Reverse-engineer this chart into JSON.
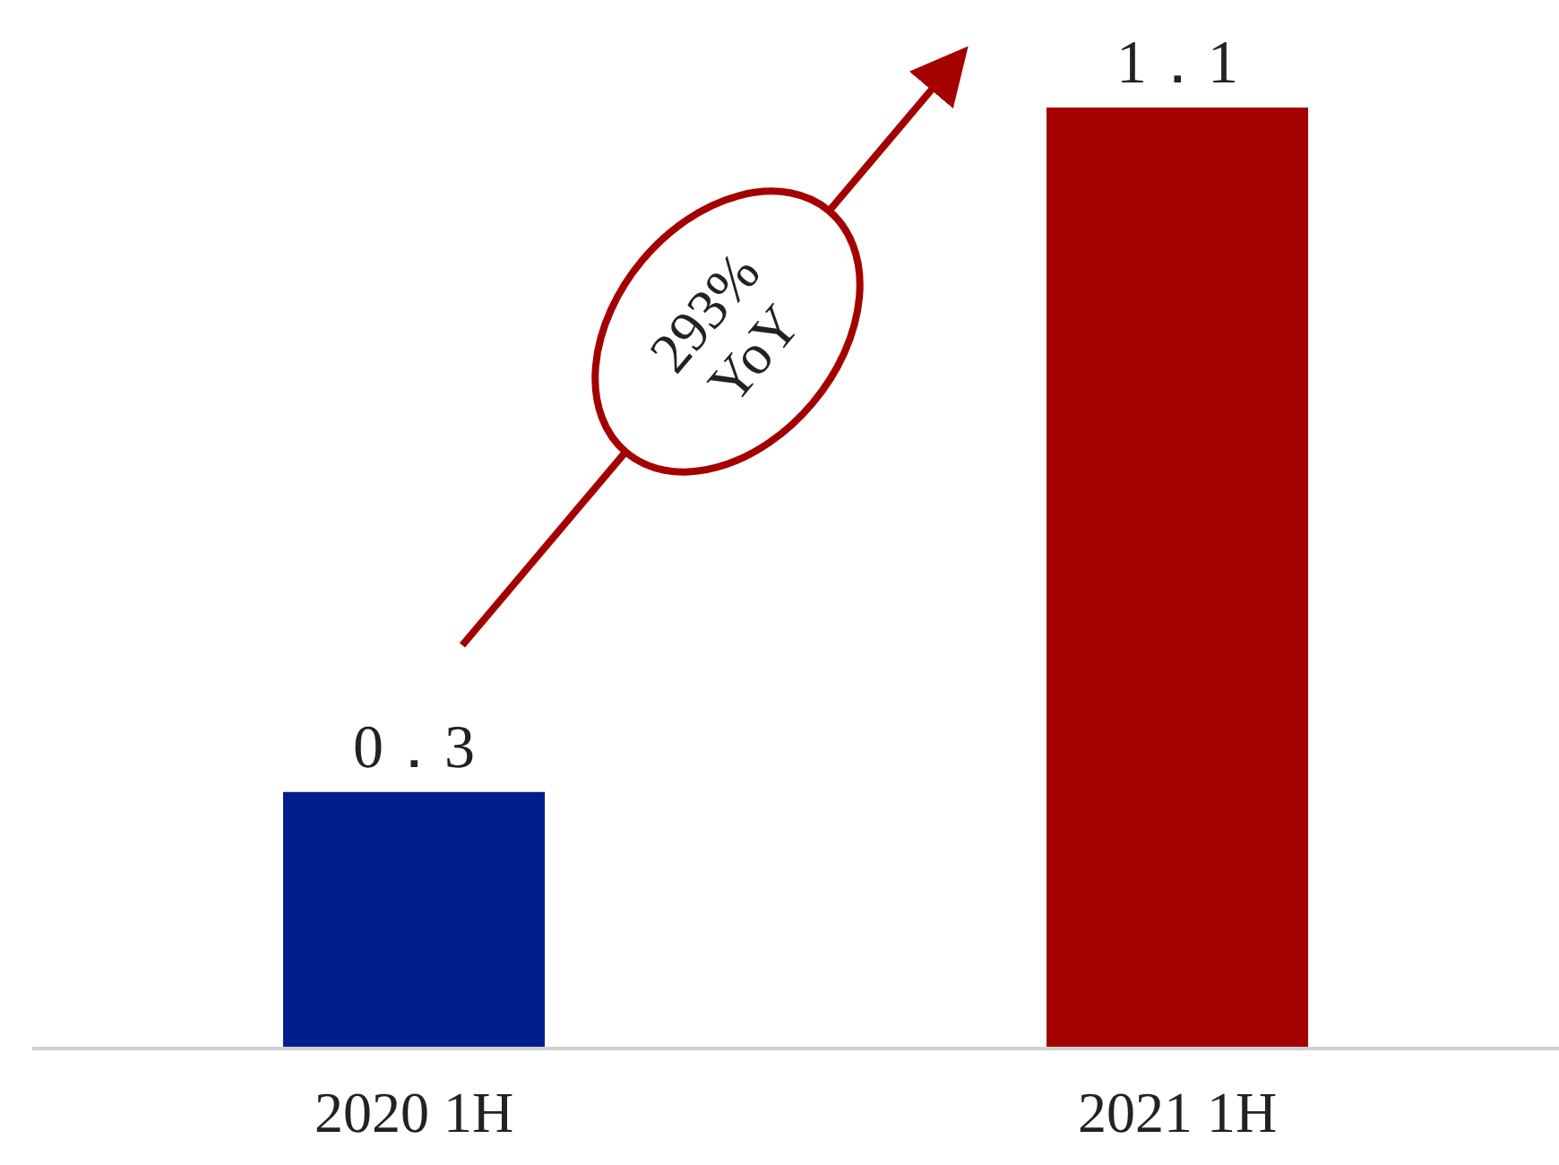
{
  "chart_data": {
    "type": "bar",
    "categories": [
      "2020 1H",
      "2021 1H"
    ],
    "values": [
      0.3,
      1.1
    ],
    "colors": [
      "#001e8c",
      "#a50000"
    ],
    "value_labels": [
      "0．3",
      "1．1"
    ],
    "annotations": [
      "293% YoY"
    ]
  }
}
